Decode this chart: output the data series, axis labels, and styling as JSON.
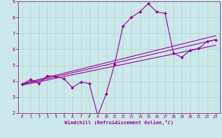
{
  "xlabel": "Windchill (Refroidissement éolien,°C)",
  "background_color": "#cce8e8",
  "grid_color": "#aad4d4",
  "line_color": "#990099",
  "spine_color": "#884488",
  "xlim": [
    -0.5,
    23.5
  ],
  "ylim": [
    2,
    9
  ],
  "xticks": [
    0,
    1,
    2,
    3,
    4,
    5,
    6,
    7,
    8,
    9,
    10,
    11,
    12,
    13,
    14,
    15,
    16,
    17,
    18,
    19,
    20,
    21,
    22,
    23
  ],
  "yticks": [
    2,
    3,
    4,
    5,
    6,
    7,
    8,
    9
  ],
  "line1_x": [
    0,
    1,
    2,
    3,
    4,
    5,
    6,
    7,
    8,
    9,
    10,
    11,
    12,
    13,
    14,
    15,
    16,
    17,
    18,
    19,
    20,
    21,
    22,
    23
  ],
  "line1_y": [
    3.8,
    4.1,
    3.85,
    4.35,
    4.3,
    4.15,
    3.6,
    3.95,
    3.85,
    1.85,
    3.2,
    5.05,
    7.45,
    8.0,
    8.35,
    8.85,
    8.35,
    8.25,
    5.75,
    5.5,
    5.95,
    6.05,
    6.5,
    6.6
  ],
  "line2_x": [
    0,
    23
  ],
  "line2_y": [
    3.8,
    6.6
  ],
  "line3_x": [
    0,
    23
  ],
  "line3_y": [
    3.75,
    6.25
  ],
  "line4_x": [
    0,
    23
  ],
  "line4_y": [
    3.85,
    6.85
  ]
}
